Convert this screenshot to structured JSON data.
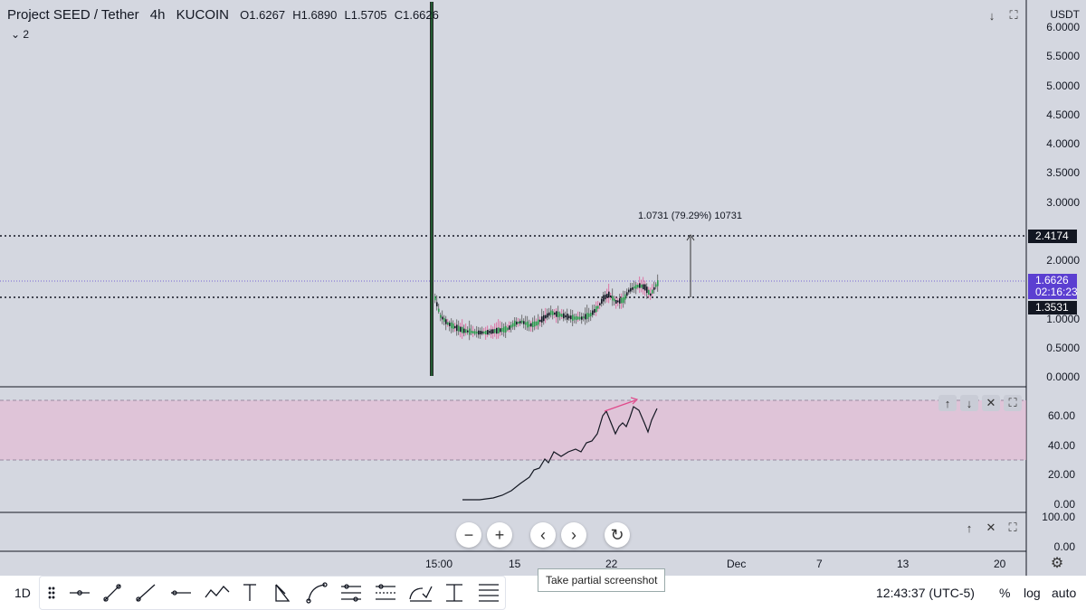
{
  "header": {
    "symbol": "Project SEED / Tether",
    "interval": "4h",
    "exchange": "KUCOIN",
    "open": "O1.6267",
    "high": "H1.6890",
    "low": "L1.5705",
    "close": "C1.6626",
    "legend_toggle": "2"
  },
  "price_axis": {
    "currency": "USDT",
    "ticks": [
      "6.0000",
      "5.5000",
      "5.0000",
      "4.5000",
      "4.0000",
      "3.5000",
      "3.0000",
      "2.0000",
      "1.0000",
      "0.5000",
      "0.0000"
    ]
  },
  "price_tags": {
    "upper_line": "2.4174",
    "last_price": "1.6626",
    "countdown": "02:16:23",
    "lower_line": "1.3531",
    "colors": {
      "line_tag": "#131722",
      "last_price": "#5b3fd1"
    }
  },
  "measure_label": "1.0731 (79.29%) 10731",
  "indicator_axis": {
    "ticks": [
      "60.00",
      "40.00",
      "20.00",
      "0.00"
    ],
    "band_color": "#e8b4d2"
  },
  "third_pane_axis": {
    "ticks": [
      "100.00",
      "0.00"
    ]
  },
  "time_axis": {
    "labels": [
      "15:00",
      "15",
      "22",
      "Dec",
      "7",
      "13",
      "20"
    ]
  },
  "nav_buttons": {
    "zoom_out": "−",
    "zoom_in": "+",
    "scroll_left": "‹",
    "scroll_right": "›",
    "reset": "↻"
  },
  "tooltip": "Take partial screenshot",
  "bottom": {
    "interval": "1D",
    "clock": "12:43:37 (UTC-5)",
    "percent": "%",
    "log": "log",
    "auto": "auto"
  },
  "drawing_tools": [
    "drag-handle-icon",
    "horizontal-ray-icon",
    "trend-line-icon",
    "ray-icon",
    "horizontal-line-icon",
    "path-icon",
    "text-icon",
    "triangle-icon",
    "curve-icon",
    "parallel-channel-icon",
    "fib-retracement-icon",
    "pattern-icon",
    "long-position-icon",
    "more-tools-icon"
  ]
}
